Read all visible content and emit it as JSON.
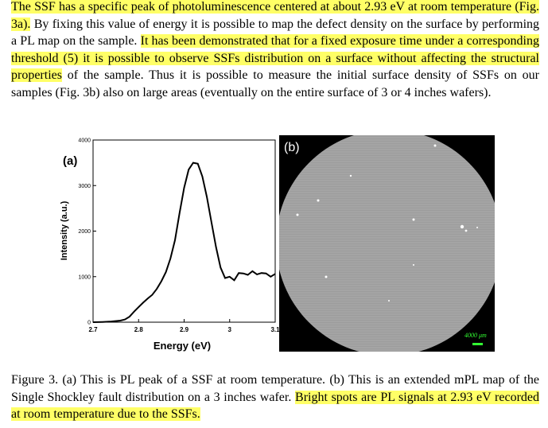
{
  "paragraph": {
    "s1": "The SSF has a specific peak of photoluminescence centered at about 2.93 eV at room temperature (Fig. 3a).",
    "s2": "By fixing this value of energy it is possible to map the defect density on the surface by performing a PL map on the sample.",
    "s3": "It has been demonstrated that for a fixed exposure time under a corresponding threshold (5) it is possible to observe SSFs distribution on a surface without affecting the structural properties",
    "s4": "of the sample. Thus it is possible to measure the initial surface density of SSFs on our samples (Fig. 3b) also on large areas (eventually on the entire surface of 3 or 4 inches wafers)."
  },
  "figure": {
    "panel_a_label": "(a)",
    "panel_b_label": "(b)",
    "scale_bar_label": "4000 μm",
    "colors": {
      "highlight": "#ffff66",
      "scale_bar": "#33ff33",
      "map_gray": "#a4a4a4"
    }
  },
  "chart_data": {
    "type": "line",
    "xlabel": "Energy (eV)",
    "ylabel": "Intensity (a.u.)",
    "xlim": [
      2.7,
      3.1
    ],
    "ylim": [
      0,
      4000
    ],
    "xticks": [
      "2.7",
      "2.8",
      "2.9",
      "3",
      "3.1"
    ],
    "yticks": [
      "0",
      "1000",
      "2000",
      "3000",
      "4000"
    ],
    "series": [
      {
        "x": [
          2.7,
          2.72,
          2.74,
          2.76,
          2.77,
          2.78,
          2.79,
          2.8,
          2.81,
          2.82,
          2.83,
          2.84,
          2.85,
          2.86,
          2.87,
          2.88,
          2.89,
          2.9,
          2.91,
          2.92,
          2.93,
          2.94,
          2.95,
          2.96,
          2.97,
          2.98,
          2.99,
          3.0,
          3.01,
          3.02,
          3.03,
          3.04,
          3.05,
          3.06,
          3.07,
          3.08,
          3.09,
          3.1
        ],
        "y": [
          0,
          5,
          15,
          35,
          60,
          120,
          230,
          330,
          430,
          520,
          600,
          730,
          900,
          1100,
          1400,
          1800,
          2400,
          2950,
          3350,
          3500,
          3480,
          3200,
          2750,
          2200,
          1650,
          1200,
          970,
          1000,
          920,
          1080,
          1070,
          1040,
          1120,
          1050,
          1080,
          1070,
          1000,
          1060
        ]
      }
    ]
  }
}
